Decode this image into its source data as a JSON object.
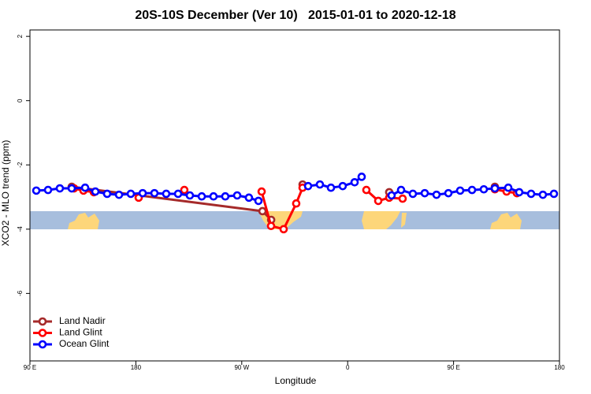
{
  "chart_data": {
    "type": "line",
    "title": "20S-10S December (Ver 10)   2015-01-01 to 2020-12-18",
    "x_label": "Longitude",
    "y_label": "XCO2 - MLO trend (ppm)",
    "xlim": [
      90,
      540
    ],
    "xticks": [
      {
        "value": 90,
        "label": "90 E"
      },
      180,
      {
        "value": 270,
        "label": "90 W"
      },
      {
        "value": 360,
        "label": "0"
      },
      {
        "value": 450,
        "label": "90 E"
      },
      {
        "value": 540,
        "label": "180"
      }
    ],
    "ylim": [
      -8.1,
      2.2
    ],
    "yticks": [
      2,
      0,
      -2,
      -4,
      -6
    ],
    "legend": "bottomleft",
    "series": [
      {
        "name": "Land Nadir",
        "color": "#a52a2a",
        "x": [
          125.5,
          287.6,
          295.0,
          null,
          321.7,
          null,
          395.3,
          null,
          485.1
        ],
        "values": [
          -2.68,
          -3.44,
          -3.71,
          null,
          -2.61,
          null,
          -2.85,
          null,
          -2.68
        ]
      },
      {
        "name": "Land Glint",
        "color": "#ff0000",
        "x": [
          127.5,
          135.5,
          144.3,
          null,
          182.4,
          null,
          221.2,
          null,
          286.9,
          294.9,
          305.6,
          316.3,
          321.7,
          null,
          375.9,
          386.0,
          395.3,
          406.7,
          null,
          485.1,
          495.1,
          503.8
        ],
        "values": [
          -2.73,
          -2.8,
          -2.85,
          null,
          -3.02,
          null,
          -2.78,
          null,
          -2.83,
          -3.9,
          -4.0,
          -3.2,
          -2.71,
          null,
          -2.78,
          -3.12,
          -3.02,
          -3.05,
          null,
          -2.76,
          -2.83,
          -2.88
        ]
      },
      {
        "name": "Ocean Glint",
        "color": "#0000ff",
        "x": [
          95.4,
          105.4,
          115.4,
          125.5,
          136.9,
          145.6,
          155.6,
          165.7,
          175.7,
          185.8,
          195.8,
          205.8,
          215.9,
          225.9,
          236.0,
          246.0,
          256.0,
          266.1,
          276.1,
          284.2,
          null,
          326.4,
          336.4,
          345.8,
          355.8,
          365.9,
          371.9,
          null,
          397.3,
          405.4,
          415.4,
          425.5,
          435.5,
          445.6,
          455.6,
          465.7,
          475.7,
          485.1,
          496.5,
          505.8,
          515.9,
          525.9,
          535.3
        ],
        "values": [
          -2.8,
          -2.78,
          -2.73,
          -2.73,
          -2.71,
          -2.83,
          -2.9,
          -2.93,
          -2.9,
          -2.88,
          -2.88,
          -2.9,
          -2.9,
          -2.95,
          -2.98,
          -2.98,
          -2.98,
          -2.95,
          -3.02,
          -3.12,
          null,
          -2.66,
          -2.61,
          -2.71,
          -2.66,
          -2.54,
          -2.37,
          null,
          -2.95,
          -2.78,
          -2.9,
          -2.88,
          -2.93,
          -2.88,
          -2.8,
          -2.78,
          -2.76,
          -2.73,
          -2.71,
          -2.85,
          -2.9,
          -2.93,
          -2.9
        ]
      }
    ]
  }
}
